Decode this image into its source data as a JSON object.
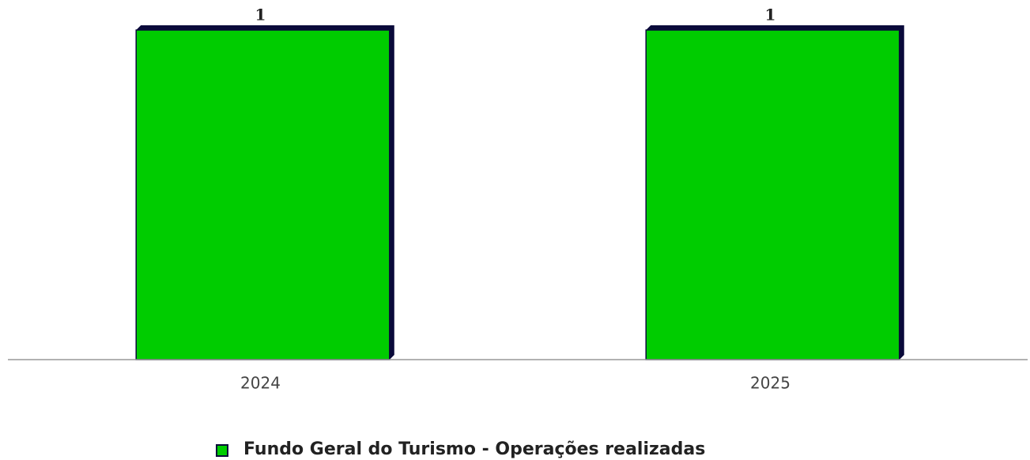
{
  "chart_data": {
    "type": "bar",
    "categories": [
      "2024",
      "2025"
    ],
    "values": [
      1,
      1
    ],
    "series_name": "Fundo Geral do Turismo - Operações realizadas",
    "color": "#00cc00",
    "shadow_color": "#0a0a3a",
    "ylim": [
      0,
      1
    ]
  }
}
